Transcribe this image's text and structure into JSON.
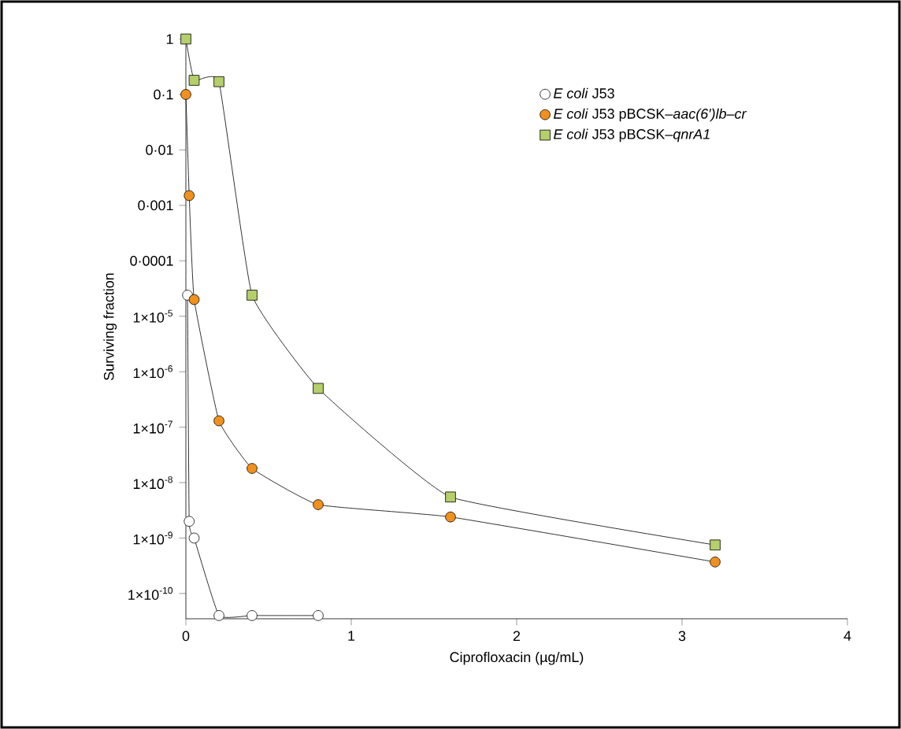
{
  "chart_data": {
    "type": "line",
    "xlabel": "Ciprofloxacin (µg/mL)",
    "ylabel": "Surviving fraction",
    "log": "y",
    "xlim": [
      0,
      4
    ],
    "xticks": [
      0,
      1,
      2,
      3,
      4
    ],
    "ylim": [
      3.5e-11,
      1.2
    ],
    "yticks": [
      1,
      {
        "value": 0.1,
        "label": "0·1"
      },
      {
        "value": 0.01,
        "label": "0·01"
      },
      {
        "value": 0.001,
        "label": "0·001"
      },
      {
        "value": 0.0001,
        "label": "0·0001"
      },
      {
        "value": 1e-05,
        "label": "1×10$^{-5}$"
      },
      {
        "value": 1e-06,
        "label": "1×10$^{-6}$"
      },
      {
        "value": 1e-07,
        "label": "1×10$^{-7}$"
      },
      {
        "value": 1e-08,
        "label": "1×10$^{-8}$"
      },
      {
        "value": 1e-09,
        "label": "1×10$^{-9}$"
      },
      {
        "value": 1e-10,
        "label": "1×10$^{-10}$"
      }
    ],
    "legend": "top right",
    "line_style": "solid",
    "grid": false,
    "series": [
      {
        "name": "*E coli* J53",
        "color": "#ffffff",
        "marker": "circle",
        "x": [
          0.01,
          0.02,
          0.05,
          0.2,
          0.4,
          0.8
        ],
        "values": [
          2.4e-05,
          2e-09,
          1e-09,
          4e-11,
          4e-11,
          4e-11
        ]
      },
      {
        "name": "*E coli* J53 pBCSK–*aac(6′)lb–cr*",
        "color": "#f0901e",
        "marker": "circle",
        "x": [
          0,
          0.02,
          0.05,
          0.2,
          0.4,
          0.8,
          1.6,
          3.2
        ],
        "values": [
          0.1,
          0.0015,
          2e-05,
          1.3e-07,
          1.8e-08,
          4e-09,
          2.4e-09,
          3.7e-10
        ]
      },
      {
        "name": "*E coli* J53 pBCSK–*qnrA1*",
        "color": "#b5cf6b",
        "marker": "square",
        "x": [
          0,
          0.05,
          0.2,
          0.4,
          0.8,
          1.6,
          3.2
        ],
        "values": [
          1,
          0.18,
          0.17,
          2.4e-05,
          5e-07,
          5.5e-09,
          7.5e-10
        ]
      }
    ]
  }
}
